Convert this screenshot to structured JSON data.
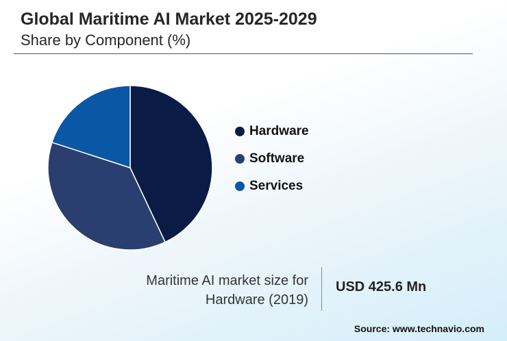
{
  "header": {
    "title": "Global Maritime AI Market 2025-2029",
    "subtitle": "Share by Component (%)"
  },
  "chart_data": {
    "type": "pie",
    "title": "Global Maritime AI Market 2025-2029",
    "subtitle": "Share by Component (%)",
    "categories": [
      "Hardware",
      "Software",
      "Services"
    ],
    "values": [
      43,
      37,
      20
    ],
    "colors": [
      "#0a1c45",
      "#2a3f70",
      "#0a57a6"
    ],
    "legend_position": "right"
  },
  "info": {
    "label_line1": "Maritime AI market size for",
    "label_line2": "Hardware (2019)",
    "value": "USD 425.6 Mn"
  },
  "source": "Source: www.technavio.com"
}
